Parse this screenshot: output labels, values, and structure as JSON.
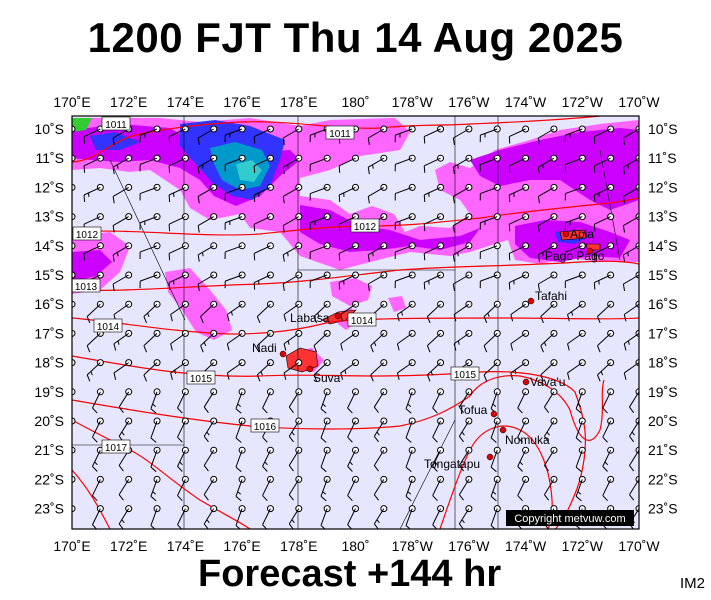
{
  "title": "1200 FJT Thu 14 Aug 2025",
  "footer": "Forecast +144 hr",
  "image_code": "IM2",
  "copyright": "Copyright metvuw.com",
  "map": {
    "lon_labels": [
      "170˚E",
      "172˚E",
      "174˚E",
      "176˚E",
      "178˚E",
      "180˚",
      "178˚W",
      "176˚W",
      "174˚W",
      "172˚W",
      "170˚W"
    ],
    "lat_labels": [
      "10˚S",
      "11˚S",
      "12˚S",
      "13˚S",
      "14˚S",
      "15˚S",
      "16˚S",
      "17˚S",
      "18˚S",
      "19˚S",
      "20˚S",
      "21˚S",
      "22˚S",
      "23˚S"
    ],
    "isobar_labels": [
      "1011",
      "1011",
      "1012",
      "1012",
      "1013",
      "1014",
      "1014",
      "1015",
      "1015",
      "1016",
      "1017"
    ],
    "places": [
      "Apia",
      "Pago Pago",
      "Tafahi",
      "Labasa",
      "Nadi",
      "Suva",
      "Vava'u",
      "Tofua",
      "Nomuka",
      "Tongatapu"
    ],
    "colors": {
      "background": "#e6e6ff",
      "rain_light": "#ff66ff",
      "rain_moderate": "#cc00ff",
      "rain_heavy": "#3333ff",
      "rain_very_heavy": "#0099cc",
      "rain_extreme": "#33cccc",
      "isobar": "#ff0000",
      "land": "#ff3333"
    }
  }
}
